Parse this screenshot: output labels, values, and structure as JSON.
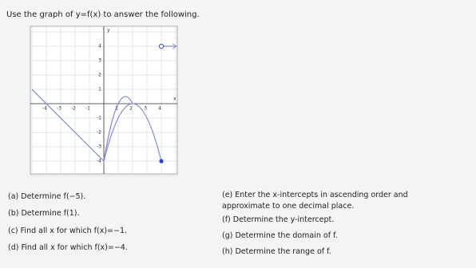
{
  "header": {
    "title": "Use the graph of y=f(x) to answer the following."
  },
  "graph": {
    "x_axis_label": "x",
    "y_axis_label": "y",
    "xticks": [
      -4,
      -3,
      -2,
      -1,
      1,
      2,
      3,
      4
    ],
    "yticks": [
      4,
      3,
      2,
      1,
      -1,
      -2,
      -3,
      -4
    ]
  },
  "questions": {
    "left": [
      "(a) Determine f(−5).",
      "(b) Determine f(1).",
      "(c) Find all x for which f(x)=−1.",
      "(d) Find all x for which f(x)=−4."
    ],
    "right": [
      "(e) Enter the x-intercepts in ascending order and",
      "approximate to one decimal place.",
      "(f) Determine the y-intercept.",
      "(g) Determine the domain of f.",
      "(h) Determine the range of f."
    ]
  }
}
